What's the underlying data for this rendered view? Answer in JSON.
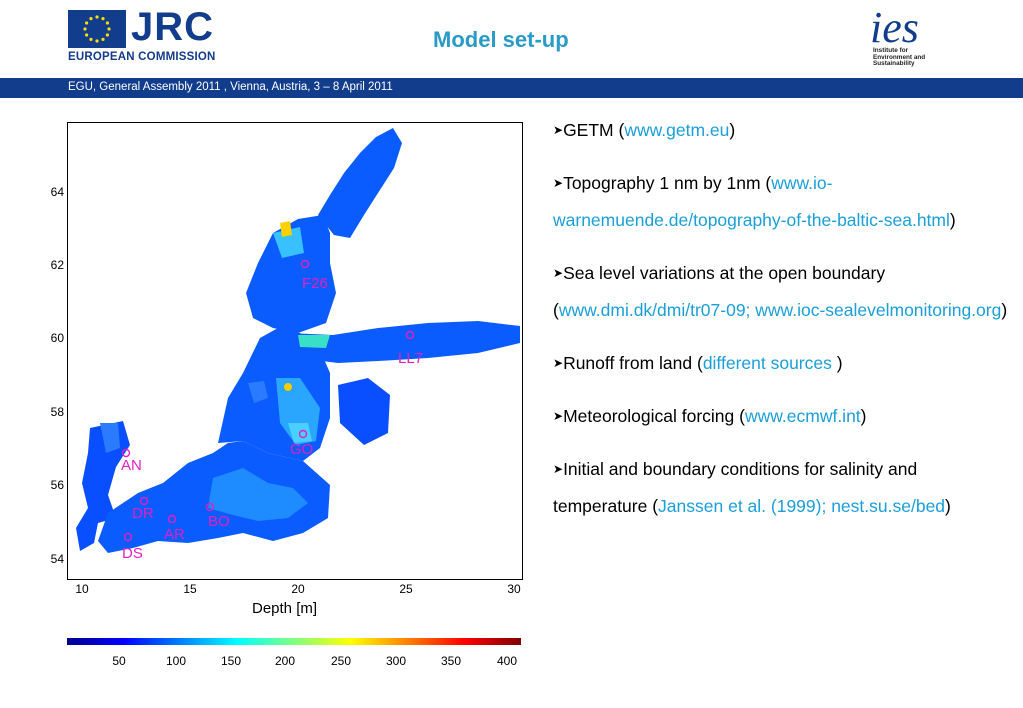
{
  "header": {
    "jrc_logo_text": "JRC",
    "commission_text": "EUROPEAN COMMISSION",
    "title": "Model set-up",
    "ies_logo_text": "ies",
    "ies_subtitle_lines": [
      "Institute for",
      "Environment and",
      "Sustainability"
    ]
  },
  "banner": {
    "text": "EGU, General Assembly 2011 , Vienna, Austria, 3 – 8 April 2011"
  },
  "figure": {
    "y_ticks": [
      "64",
      "62",
      "60",
      "58",
      "56",
      "54"
    ],
    "x_ticks": [
      "10",
      "15",
      "20",
      "25",
      "30"
    ],
    "xlabel": "Depth [m]",
    "colorbar_ticks": [
      "50",
      "100",
      "150",
      "200",
      "250",
      "300",
      "350",
      "400"
    ],
    "stations": [
      "F26",
      "LL7",
      "GO",
      "AN",
      "DR",
      "BO",
      "AR",
      "DS"
    ],
    "colors": {
      "station": "#e020c0",
      "water_shallow": "#0a5cff",
      "land": "#ffffff"
    }
  },
  "bullets": [
    {
      "text": "GETM (",
      "link": "www.getm.eu",
      "end": ")"
    },
    {
      "text": "Topography 1 nm by 1nm (",
      "link": "www.io-warnemuende.de/topography-of-the-baltic-sea.html",
      "end": ")"
    },
    {
      "text": "Sea level variations at the open boundary (",
      "link": "www.dmi.dk/dmi/tr07-09; www.ioc-sealevelmonitoring.org",
      "end": ")"
    },
    {
      "text": "Runoff from land (",
      "link": "different sources",
      "end": " )"
    },
    {
      "text": "Meteorological forcing (",
      "link": "www.ecmwf.int",
      "end": ")"
    },
    {
      "text": "Initial and boundary conditions for salinity and temperature (",
      "link": "Janssen et al. (1999); nest.su.se/bed",
      "end": ")"
    }
  ],
  "colors": {
    "brand_blue": "#123c8c",
    "title_blue": "#2a9bc7",
    "link_blue": "#1a9fd9"
  }
}
